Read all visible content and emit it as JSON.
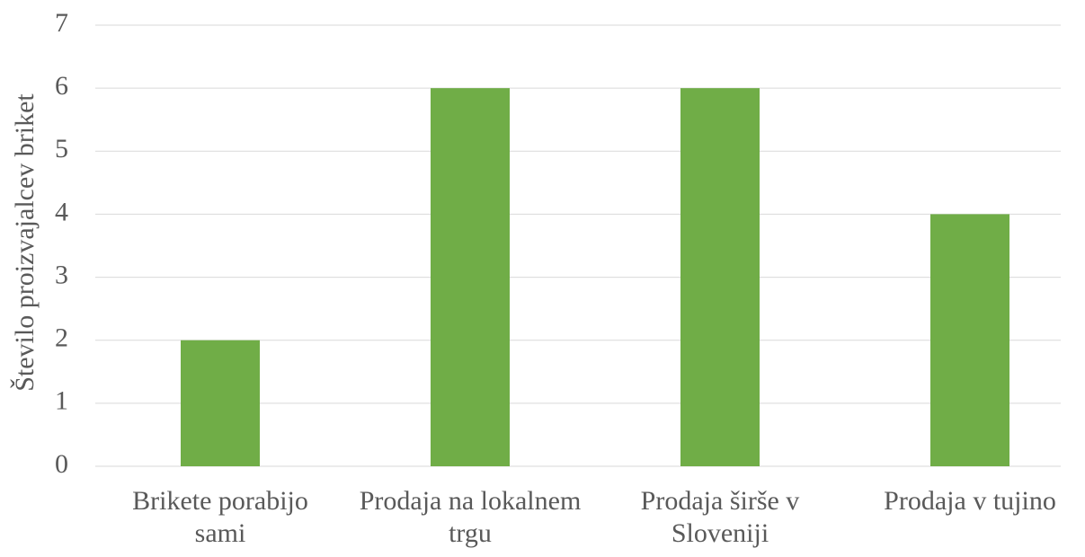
{
  "chart_data": {
    "type": "bar",
    "ylabel": "Število proizvajalcev briket",
    "categories": [
      "Brikete porabijo sami",
      "Prodaja na lokalnem trgu",
      "Prodaja širše v Sloveniji",
      "Prodaja v tujino"
    ],
    "values": [
      2,
      6,
      6,
      4
    ],
    "color": "#70ad47",
    "ylim": [
      0,
      7
    ],
    "yticks": [
      0,
      1,
      2,
      3,
      4,
      5,
      6,
      7
    ],
    "grid": true
  }
}
